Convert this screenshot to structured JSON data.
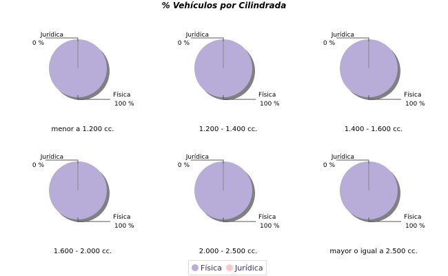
{
  "chart_data": {
    "type": "pie",
    "title": "% Vehículos por Cilindrada",
    "legend": {
      "placement": "bottom",
      "entries": [
        "Física",
        "Jurídica"
      ]
    },
    "colors": {
      "Física": "#b8acd8",
      "Jurídica": "#ffc8c8"
    },
    "slice_labels": [
      {
        "name": "Física",
        "label": "100 %"
      },
      {
        "name": "Jurídica",
        "label": "0 %"
      }
    ],
    "pies": [
      {
        "category": "menor a 1.200 cc.",
        "values": {
          "Física": 100,
          "Jurídica": 0
        }
      },
      {
        "category": "1.200 - 1.400 cc.",
        "values": {
          "Física": 100,
          "Jurídica": 0
        }
      },
      {
        "category": "1.400 - 1.600 cc.",
        "values": {
          "Física": 100,
          "Jurídica": 0
        }
      },
      {
        "category": "1.600 - 2.000 cc.",
        "values": {
          "Física": 100,
          "Jurídica": 0
        }
      },
      {
        "category": "2.000 - 2.500 cc.",
        "values": {
          "Física": 100,
          "Jurídica": 0
        }
      },
      {
        "category": "mayor o igual a 2.500 cc.",
        "values": {
          "Física": 100,
          "Jurídica": 0
        }
      }
    ]
  }
}
